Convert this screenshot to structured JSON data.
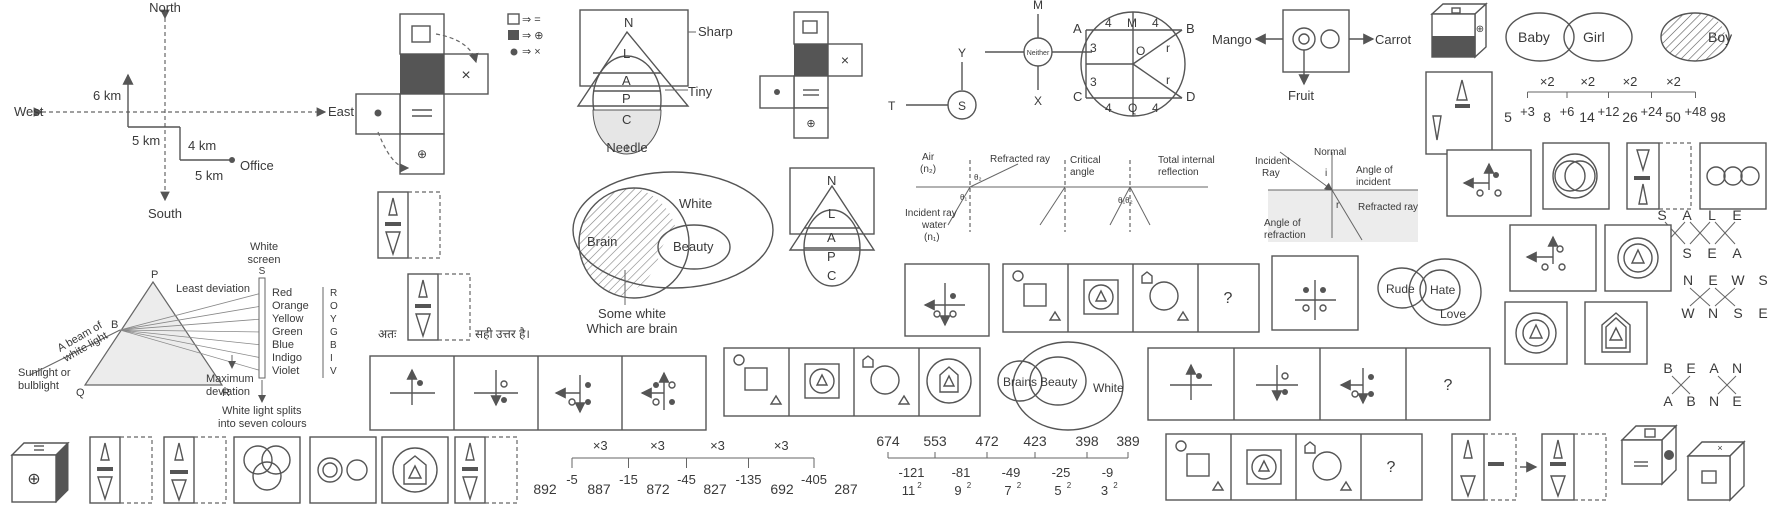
{
  "compass": {
    "north": "North",
    "south": "South",
    "east": "East",
    "west": "West",
    "d6": "6 km",
    "d5a": "5 km",
    "d4": "4 km",
    "d5b": "5 km",
    "office": "Office"
  },
  "prism": {
    "p": "P",
    "q": "Q",
    "r": "R",
    "b": "B",
    "s": "S",
    "screen": [
      "White",
      "screen"
    ],
    "least": "Least deviation",
    "beam": [
      "A beam of",
      "white light"
    ],
    "source": [
      "Sunlight or",
      "bulblight"
    ],
    "colours": [
      "Red",
      "Orange",
      "Yellow",
      "Green",
      "Blue",
      "Indigo",
      "Violet"
    ],
    "letters": [
      "R",
      "O",
      "Y",
      "G",
      "B",
      "I",
      "V"
    ],
    "maxdev": [
      "Maximum",
      "deviation"
    ],
    "splits": [
      "White light splits",
      "into seven colours"
    ]
  },
  "legend": {
    "a": "⇒ =",
    "b": "⇒ ⊕",
    "c": "⇒ ×"
  },
  "hindi": {
    "atah": "अतः",
    "answer": "सही उत्तर है।"
  },
  "venn_nlap": {
    "n": "N",
    "l": "L",
    "a": "A",
    "p": "P",
    "c": "C",
    "sharp": "Sharp",
    "tiny": "Tiny",
    "needle": "Needle"
  },
  "venn_brain": {
    "brain": "Brain",
    "white": "White",
    "beauty": "Beauty",
    "caption": [
      "Some white",
      "Which are brain"
    ]
  },
  "venn_nlap2": {
    "n": "N",
    "l": "L",
    "a": "A",
    "p": "P",
    "c": "C"
  },
  "direction2": {
    "m": "M",
    "y": "Y",
    "t": "T",
    "s": "S",
    "x": "X",
    "neither": "Neither"
  },
  "circle_grid": {
    "a": "A",
    "b": "B",
    "c": "C",
    "d": "D",
    "top": [
      "4",
      "M",
      "4"
    ],
    "bottom": [
      "4",
      "Q",
      "4"
    ],
    "left": [
      "3",
      "3"
    ],
    "o": "O",
    "r1": "r",
    "r2": "r"
  },
  "mango": {
    "mango": "Mango",
    "carrot": "Carrot",
    "fruit": "Fruit"
  },
  "refraction1": {
    "air": [
      "Air",
      "(n₂)"
    ],
    "refracted": "Refracted ray",
    "critical": [
      "Critical",
      "angle"
    ],
    "tir": [
      "Total internal",
      "reflection"
    ],
    "incident": [
      "Incident ray",
      "water",
      "(n₁)"
    ],
    "theta2": "θ₂",
    "theta1": "θ₁",
    "theta12": "θ₁θ₂"
  },
  "refraction2": {
    "incident": [
      "Incident",
      "Ray"
    ],
    "normal": "Normal",
    "i": "i",
    "angle_inc": [
      "Angle of",
      "incident"
    ],
    "refracted": "Refracted ray",
    "angle_ref": [
      "Angle of",
      "refraction"
    ],
    "r": "r"
  },
  "baby": {
    "baby": "Baby",
    "girl": "Girl",
    "boy": "Boy"
  },
  "series1": {
    "mult": [
      "×2",
      "×2",
      "×2",
      "×2"
    ],
    "terms": [
      "5",
      "8",
      "14",
      "26",
      "50",
      "98"
    ],
    "diffs": [
      "+3",
      "+6",
      "+12",
      "+24",
      "+48"
    ]
  },
  "series2": {
    "mult": [
      "×3",
      "×3",
      "×3",
      "×3"
    ],
    "terms": [
      "892",
      "887",
      "872",
      "827",
      "692",
      "287"
    ],
    "diffs": [
      "-5",
      "-15",
      "-45",
      "-135",
      "-405"
    ]
  },
  "series3": {
    "terms": [
      "674",
      "553",
      "472",
      "423",
      "398",
      "389"
    ],
    "diffs": [
      "-121",
      "-81",
      "-49",
      "-25",
      "-9"
    ],
    "squares": [
      "11",
      "9",
      "7",
      "5",
      "3"
    ]
  },
  "rude": {
    "rude": "Rude",
    "hate": "Hate",
    "love": "Love"
  },
  "brains": {
    "brains": "Brains",
    "beauty": "Beauty",
    "white": "White"
  },
  "question": "?",
  "sale": {
    "top": [
      "S",
      "A",
      "L",
      "E"
    ],
    "bottom": [
      "L",
      "S",
      "E",
      "A"
    ]
  },
  "news": {
    "top": [
      "N",
      "E",
      "W",
      "S"
    ],
    "bottom": [
      "W",
      "N",
      "S",
      "E"
    ]
  },
  "bean": {
    "top": [
      "B",
      "E",
      "A",
      "N"
    ],
    "bottom": [
      "A",
      "B",
      "N",
      "E"
    ]
  }
}
